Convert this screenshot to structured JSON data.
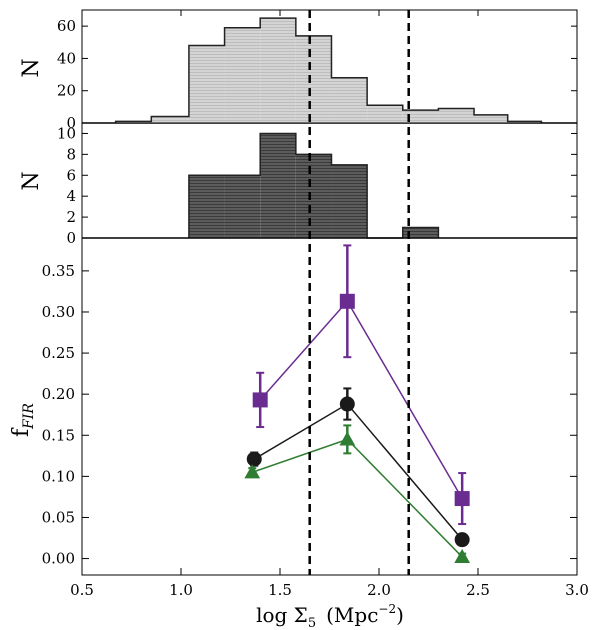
{
  "chart_data": [
    {
      "type": "bar",
      "panel": "top-histogram",
      "ylabel": "N",
      "xlim": [
        0.5,
        3.0
      ],
      "ylim": [
        0,
        70
      ],
      "yticks": [
        0,
        20,
        40,
        60
      ],
      "bar_color": "#d4d4d4",
      "bin_edges": [
        0.67,
        0.85,
        1.04,
        1.22,
        1.4,
        1.58,
        1.76,
        1.94,
        2.12,
        2.3,
        2.48,
        2.65,
        2.82
      ],
      "values": [
        1,
        4,
        48,
        59,
        65,
        54,
        28,
        11,
        8,
        9,
        5,
        1
      ]
    },
    {
      "type": "bar",
      "panel": "middle-histogram",
      "ylabel": "N",
      "xlim": [
        0.5,
        3.0
      ],
      "ylim": [
        0,
        11
      ],
      "yticks": [
        0,
        2,
        4,
        6,
        8,
        10
      ],
      "bar_color": "#5c5c5c",
      "bin_edges": [
        1.04,
        1.22,
        1.4,
        1.58,
        1.76,
        1.94,
        2.12,
        2.3
      ],
      "values": [
        6,
        6,
        10,
        8,
        7,
        0,
        1
      ]
    },
    {
      "type": "line",
      "panel": "main",
      "xlabel": "log Σ",
      "xlabel_sub": "5",
      "xlabel_units": "(Mpc",
      "xlabel_sup": "−2",
      "xlabel_close": ")",
      "ylabel": "f",
      "ylabel_sub": "FIR",
      "xlim": [
        0.5,
        3.0
      ],
      "ylim": [
        -0.02,
        0.39
      ],
      "xticks": [
        0.5,
        1.0,
        1.5,
        2.0,
        2.5,
        3.0
      ],
      "xtick_labels": [
        "0.5",
        "1.0",
        "1.5",
        "2.0",
        "2.5",
        "3.0"
      ],
      "yticks": [
        0.0,
        0.05,
        0.1,
        0.15,
        0.2,
        0.25,
        0.3,
        0.35
      ],
      "ytick_labels": [
        "0.00",
        "0.05",
        "0.10",
        "0.15",
        "0.20",
        "0.25",
        "0.30",
        "0.35"
      ],
      "vlines": [
        1.65,
        2.15
      ],
      "series": [
        {
          "name": "purple-squares",
          "marker": "square",
          "color": "#6a2c91",
          "x": [
            1.4,
            1.84,
            2.42
          ],
          "y": [
            0.193,
            0.313,
            0.073
          ],
          "err": [
            0.033,
            0.068,
            0.031
          ]
        },
        {
          "name": "black-circles",
          "marker": "circle",
          "color": "#1a1a1a",
          "x": [
            1.37,
            1.84,
            2.42
          ],
          "y": [
            0.121,
            0.188,
            0.023
          ],
          "err": [
            0.008,
            0.019,
            0.005
          ]
        },
        {
          "name": "green-triangles",
          "marker": "triangle",
          "color": "#2e7d32",
          "x": [
            1.36,
            1.84,
            2.42
          ],
          "y": [
            0.105,
            0.145,
            0.002
          ],
          "err": [
            0.005,
            0.017,
            0.004
          ]
        }
      ]
    }
  ]
}
